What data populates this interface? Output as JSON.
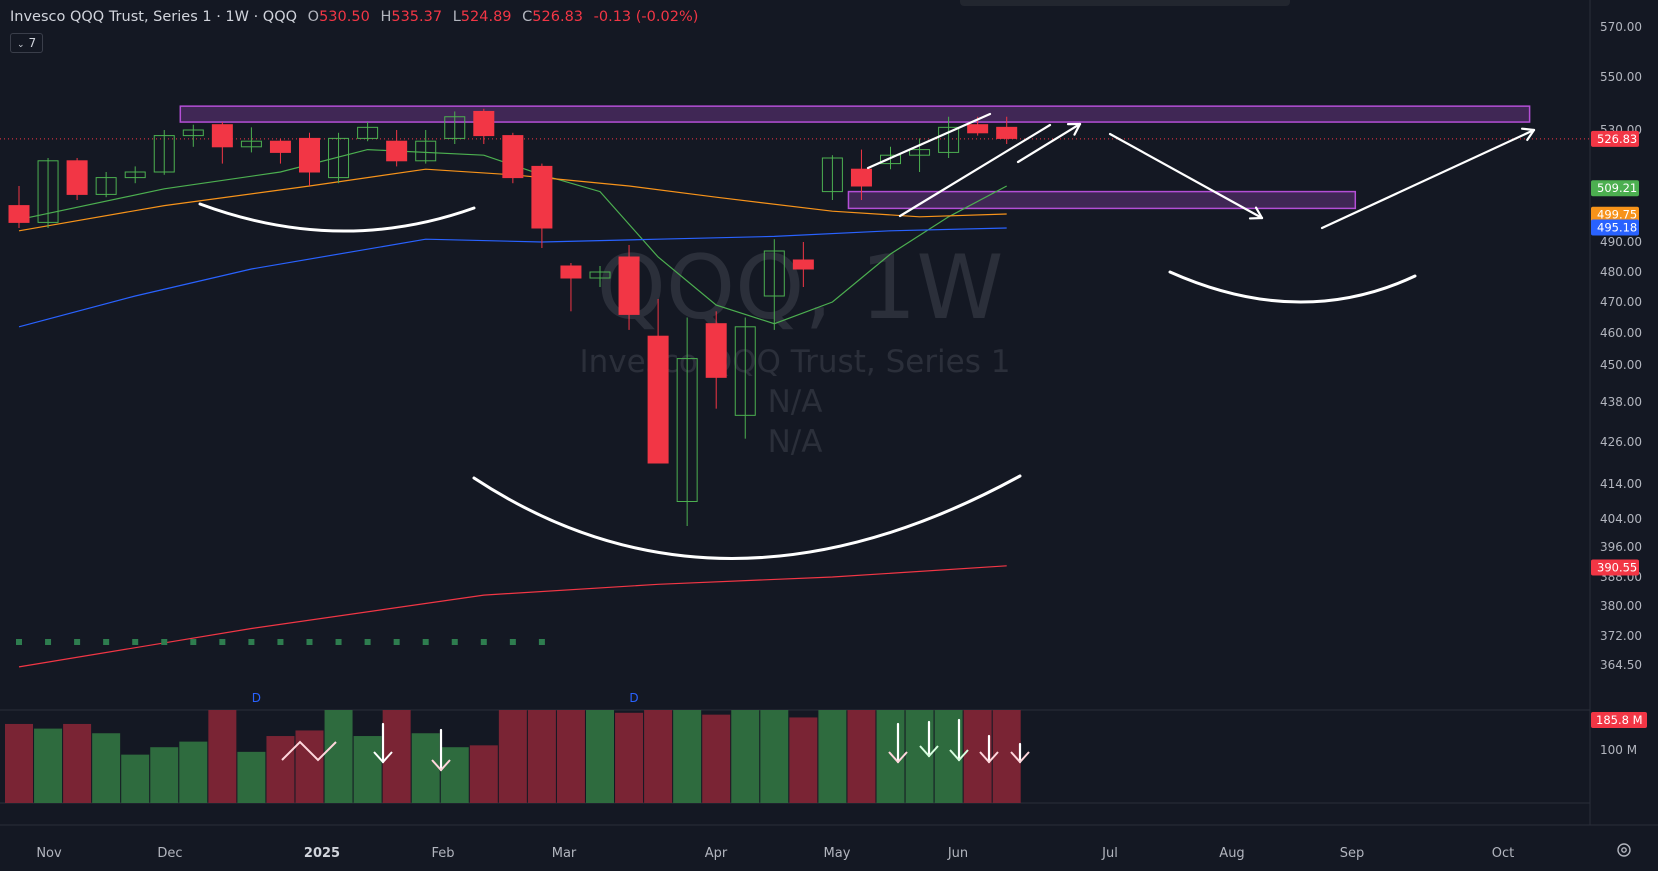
{
  "header": {
    "title": "Invesco QQQ Trust, Series 1 · 1W · QQQ",
    "open_label": "O",
    "open": "530.50",
    "high_label": "H",
    "high": "535.37",
    "low_label": "L",
    "low": "524.89",
    "close_label": "C",
    "close": "526.83",
    "change": "-0.13 (-0.02%)",
    "indicator_count": "7"
  },
  "watermark": {
    "symbol": "QQQ, 1W",
    "name": "Invesco QQQ Trust, Series 1",
    "line1": "N/A",
    "line2": "N/A"
  },
  "colors": {
    "background": "#141823",
    "up": "#4caf50",
    "down": "#f23645",
    "ema_fast": "#4caf50",
    "ema_mid": "#f7931a",
    "sma_slow": "#2962ff",
    "sma_long": "#f23645",
    "zone": "#b44fd6",
    "drawing": "#ffffff",
    "vol_up": "#2e6b3e",
    "vol_down": "#7a2434"
  },
  "chart_data": {
    "type": "candlestick",
    "title": "Invesco QQQ Trust, Series 1 · 1W · QQQ",
    "price_ticks": [
      "570.00",
      "550.00",
      "530.00",
      "490.00",
      "480.00",
      "470.00",
      "460.00",
      "450.00",
      "438.00",
      "426.00",
      "414.00",
      "404.00",
      "396.00",
      "388.00",
      "380.00",
      "372.00",
      "364.50"
    ],
    "x_labels": [
      "Nov",
      "Dec",
      "2025",
      "Feb",
      "Mar",
      "Apr",
      "May",
      "Jun",
      "Jul",
      "Aug",
      "Sep",
      "Oct"
    ],
    "candles": [
      {
        "o": 503,
        "h": 510,
        "l": 495,
        "c": 497
      },
      {
        "o": 497,
        "h": 520,
        "l": 495,
        "c": 519
      },
      {
        "o": 519,
        "h": 520,
        "l": 505,
        "c": 507
      },
      {
        "o": 507,
        "h": 515,
        "l": 506,
        "c": 513
      },
      {
        "o": 513,
        "h": 517,
        "l": 511,
        "c": 515
      },
      {
        "o": 515,
        "h": 530,
        "l": 514,
        "c": 528
      },
      {
        "o": 528,
        "h": 532,
        "l": 524,
        "c": 530
      },
      {
        "o": 532,
        "h": 533,
        "l": 518,
        "c": 524
      },
      {
        "o": 524,
        "h": 531,
        "l": 522,
        "c": 526
      },
      {
        "o": 526,
        "h": 527,
        "l": 518,
        "c": 522
      },
      {
        "o": 527,
        "h": 529,
        "l": 510,
        "c": 515
      },
      {
        "o": 513,
        "h": 529,
        "l": 511,
        "c": 527
      },
      {
        "o": 527,
        "h": 533,
        "l": 526,
        "c": 531
      },
      {
        "o": 526,
        "h": 530,
        "l": 517,
        "c": 519
      },
      {
        "o": 519,
        "h": 530,
        "l": 518,
        "c": 526
      },
      {
        "o": 527,
        "h": 537,
        "l": 525,
        "c": 535
      },
      {
        "o": 537,
        "h": 538,
        "l": 525,
        "c": 528
      },
      {
        "o": 528,
        "h": 529,
        "l": 511,
        "c": 513
      },
      {
        "o": 517,
        "h": 518,
        "l": 488,
        "c": 495
      },
      {
        "o": 482,
        "h": 483,
        "l": 467,
        "c": 478
      },
      {
        "o": 478,
        "h": 482,
        "l": 475,
        "c": 480
      },
      {
        "o": 485,
        "h": 489,
        "l": 461,
        "c": 466
      },
      {
        "o": 459,
        "h": 471,
        "l": 420,
        "c": 420
      },
      {
        "o": 409,
        "h": 465,
        "l": 402,
        "c": 452
      },
      {
        "o": 463,
        "h": 467,
        "l": 436,
        "c": 446
      },
      {
        "o": 434,
        "h": 465,
        "l": 427,
        "c": 462
      },
      {
        "o": 472,
        "h": 491,
        "l": 461,
        "c": 487
      },
      {
        "o": 484,
        "h": 490,
        "l": 475,
        "c": 481
      },
      {
        "o": 508,
        "h": 521,
        "l": 505,
        "c": 520
      },
      {
        "o": 516,
        "h": 523,
        "l": 505,
        "c": 510
      },
      {
        "o": 518,
        "h": 524,
        "l": 516,
        "c": 521
      },
      {
        "o": 521,
        "h": 527,
        "l": 515,
        "c": 523
      },
      {
        "o": 522,
        "h": 535,
        "l": 520,
        "c": 531
      },
      {
        "o": 532,
        "h": 535,
        "l": 528,
        "c": 529
      },
      {
        "o": 531,
        "h": 535,
        "l": 525,
        "c": 527
      }
    ],
    "series": [
      {
        "name": "EMA 10",
        "color": "#4caf50",
        "points": [
          [
            0,
            498
          ],
          [
            5,
            509
          ],
          [
            9,
            515
          ],
          [
            12,
            523
          ],
          [
            16,
            521
          ],
          [
            18,
            514
          ],
          [
            20,
            508
          ],
          [
            22,
            485
          ],
          [
            24,
            469
          ],
          [
            26,
            463
          ],
          [
            28,
            470
          ],
          [
            30,
            486
          ],
          [
            32,
            499
          ],
          [
            34,
            510
          ]
        ]
      },
      {
        "name": "EMA 20",
        "color": "#f7931a",
        "points": [
          [
            0,
            494
          ],
          [
            5,
            503
          ],
          [
            10,
            510
          ],
          [
            14,
            516
          ],
          [
            17,
            514
          ],
          [
            19,
            512
          ],
          [
            21,
            510
          ],
          [
            24,
            506
          ],
          [
            28,
            501
          ],
          [
            31,
            499
          ],
          [
            34,
            500
          ]
        ]
      },
      {
        "name": "SMA 50",
        "color": "#2962ff",
        "points": [
          [
            0,
            462
          ],
          [
            4,
            472
          ],
          [
            8,
            481
          ],
          [
            14,
            491
          ],
          [
            18,
            490
          ],
          [
            22,
            491
          ],
          [
            26,
            492
          ],
          [
            30,
            494
          ],
          [
            34,
            495
          ]
        ]
      },
      {
        "name": "SMA 200",
        "color": "#f23645",
        "points": [
          [
            0,
            364
          ],
          [
            8,
            374
          ],
          [
            16,
            383
          ],
          [
            22,
            386
          ],
          [
            28,
            388
          ],
          [
            34,
            391
          ]
        ]
      }
    ],
    "price_labels": [
      {
        "label": "526.83",
        "value": 526.83,
        "color": "#f23645"
      },
      {
        "label": "509.21",
        "value": 509.21,
        "color": "#4caf50"
      },
      {
        "label": "499.75",
        "value": 499.75,
        "color": "#f7931a"
      },
      {
        "label": "495.18",
        "value": 495.18,
        "color": "#2962ff"
      },
      {
        "label": "390.55",
        "value": 390.55,
        "color": "#f23645"
      }
    ],
    "volume_label": "185.8 M",
    "volume_tick": "100 M",
    "volume": [
      0.85,
      0.8,
      0.85,
      0.75,
      0.52,
      0.6,
      0.66,
      1.0,
      0.55,
      0.72,
      0.78,
      1.0,
      0.72,
      1.0,
      0.75,
      0.6,
      0.62,
      1.0,
      1.0,
      1.0,
      1.0,
      0.97,
      1.0,
      1.0,
      0.95,
      1.0,
      1.0,
      0.92,
      1.0,
      1.0,
      1.0,
      1.0,
      1.0,
      1.0,
      1.0
    ],
    "events": [
      "D",
      "D"
    ],
    "zones": [
      {
        "from_bar": 6,
        "to_bar": 52,
        "top": 539,
        "bottom": 533
      },
      {
        "from_bar": 29,
        "to_bar": 46,
        "top": 508,
        "bottom": 502
      }
    ],
    "grid": false
  }
}
